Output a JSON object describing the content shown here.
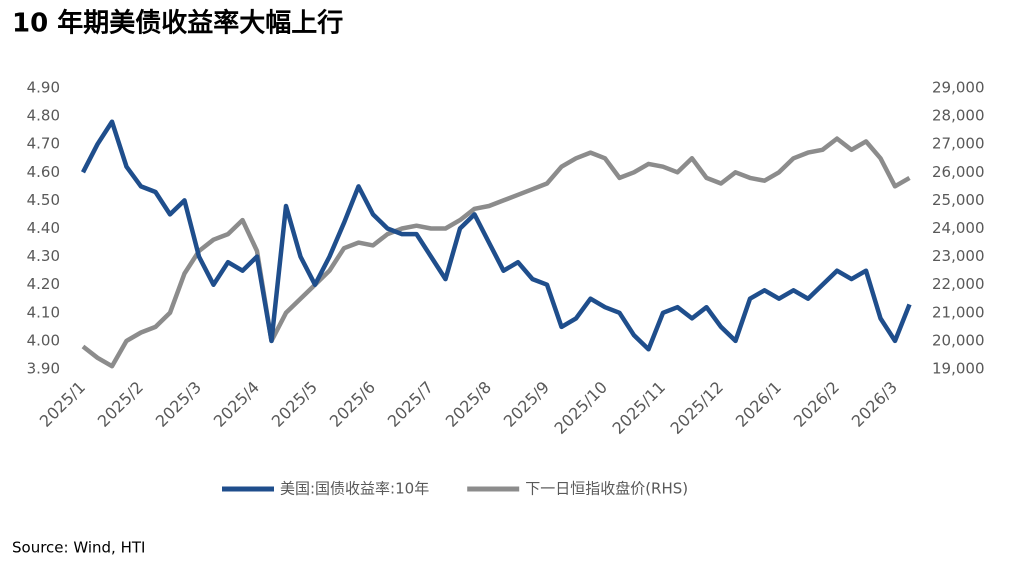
{
  "chart_data": {
    "type": "line",
    "title": "10 年期美债收益率大幅上行",
    "source": "Source: Wind, HTI",
    "categories": [
      "2025/1",
      null,
      null,
      null,
      "2025/2",
      null,
      null,
      null,
      "2025/3",
      null,
      null,
      null,
      "2025/4",
      null,
      null,
      null,
      "2025/5",
      null,
      null,
      null,
      "2025/6",
      null,
      null,
      null,
      "2025/7",
      null,
      null,
      null,
      "2025/8",
      null,
      null,
      null,
      "2025/9",
      null,
      null,
      null,
      "2025/10",
      null,
      null,
      null,
      "2025/11",
      null,
      null,
      null,
      "2025/12",
      null,
      null,
      null,
      "2026/1",
      null,
      null,
      null,
      "2026/2",
      null,
      null,
      null,
      "2026/3",
      null
    ],
    "series": [
      {
        "name": "美国:国债收益率:10年",
        "color": "#1f4e8c",
        "values": [
          4.6,
          4.7,
          4.78,
          4.62,
          4.55,
          4.53,
          4.45,
          4.5,
          4.3,
          4.2,
          4.28,
          4.25,
          4.3,
          4.0,
          4.48,
          4.3,
          4.2,
          4.3,
          4.42,
          4.55,
          4.45,
          4.4,
          4.38,
          4.38,
          4.3,
          4.22,
          4.4,
          4.45,
          4.35,
          4.25,
          4.28,
          4.22,
          4.2,
          4.05,
          4.08,
          4.15,
          4.12,
          4.1,
          4.02,
          3.97,
          4.1,
          4.12,
          4.08,
          4.12,
          4.05,
          4.0,
          4.15,
          4.18,
          4.15,
          4.18,
          4.15,
          4.2,
          4.25,
          4.22,
          4.25,
          4.08,
          4.0,
          4.13
        ]
      },
      {
        "name": "下一日恒指收盘价(RHS)",
        "color": "#8c8c8c",
        "axis": "y2",
        "values": [
          19800,
          19400,
          19100,
          20000,
          20300,
          20500,
          21000,
          22400,
          23200,
          23600,
          23800,
          24300,
          23200,
          20000,
          21000,
          21500,
          22000,
          22500,
          23300,
          23500,
          23400,
          23800,
          24000,
          24100,
          24000,
          24000,
          24300,
          24700,
          24800,
          25000,
          25200,
          25400,
          25600,
          26200,
          26500,
          26700,
          26500,
          25800,
          26000,
          26300,
          26200,
          26000,
          26500,
          25800,
          25600,
          26000,
          25800,
          25700,
          26000,
          26500,
          26700,
          26800,
          27200,
          26800,
          27100,
          26500,
          25500,
          25800
        ]
      }
    ],
    "ylim": [
      3.9,
      4.9
    ],
    "yticks": [
      {
        "value": 3.9,
        "label": "3.90"
      },
      {
        "value": 4.0,
        "label": "4.00"
      },
      {
        "value": 4.1,
        "label": "4.10"
      },
      {
        "value": 4.2,
        "label": "4.20"
      },
      {
        "value": 4.3,
        "label": "4.30"
      },
      {
        "value": 4.4,
        "label": "4.40"
      },
      {
        "value": 4.5,
        "label": "4.50"
      },
      {
        "value": 4.6,
        "label": "4.60"
      },
      {
        "value": 4.7,
        "label": "4.70"
      },
      {
        "value": 4.8,
        "label": "4.80"
      },
      {
        "value": 4.9,
        "label": "4.90"
      }
    ],
    "y2lim": [
      19000,
      29000
    ],
    "y2ticks": [
      {
        "value": 19000,
        "label": "19,000"
      },
      {
        "value": 20000,
        "label": "20,000"
      },
      {
        "value": 21000,
        "label": "21,000"
      },
      {
        "value": 22000,
        "label": "22,000"
      },
      {
        "value": 23000,
        "label": "23,000"
      },
      {
        "value": 24000,
        "label": "24,000"
      },
      {
        "value": 25000,
        "label": "25,000"
      },
      {
        "value": 26000,
        "label": "26,000"
      },
      {
        "value": 27000,
        "label": "27,000"
      },
      {
        "value": 28000,
        "label": "28,000"
      },
      {
        "value": 29000,
        "label": "29,000"
      }
    ],
    "legend": "bottom"
  }
}
